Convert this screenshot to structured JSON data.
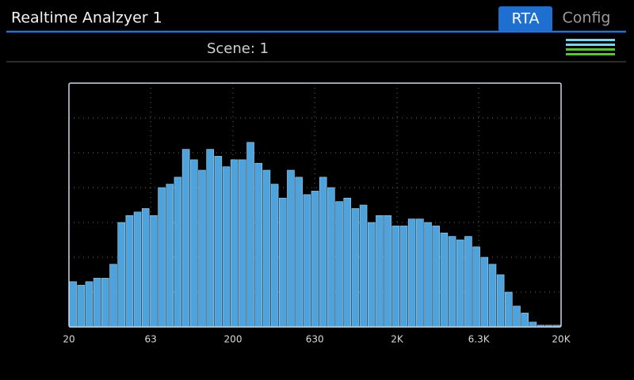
{
  "header": {
    "title": "Realtime Analzyer 1",
    "tabs": [
      "RTA",
      "Config"
    ],
    "active_tab": "RTA"
  },
  "scene": "Scene: 1",
  "chart_data": {
    "type": "bar",
    "color": "#4fa3dc",
    "categories": [
      null,
      null,
      null,
      null,
      null,
      null,
      null,
      null,
      null,
      null,
      null,
      null,
      null,
      null,
      null,
      null,
      null,
      null,
      null,
      null,
      null,
      null,
      null,
      null,
      null,
      null,
      null,
      null,
      null,
      null,
      null,
      null,
      null,
      null,
      null,
      null,
      null,
      null,
      null,
      null,
      null,
      null,
      null,
      null,
      null,
      null,
      null,
      null,
      null,
      null,
      null,
      null,
      null,
      null,
      null,
      null,
      null,
      null,
      null,
      null,
      null
    ],
    "values": [
      13,
      12,
      13,
      14,
      14,
      18,
      30,
      32,
      33,
      34,
      32,
      40,
      41,
      43,
      51,
      48,
      45,
      51,
      49,
      46,
      48,
      48,
      53,
      47,
      45,
      41,
      37,
      45,
      43,
      38,
      39,
      43,
      40,
      36,
      37,
      34,
      35,
      30,
      32,
      32,
      29,
      29,
      31,
      31,
      30,
      29,
      27,
      26,
      25,
      26,
      23,
      20,
      18,
      15,
      10,
      6,
      4,
      1.4,
      0.5,
      0.5,
      0.5
    ],
    "ylim": [
      0,
      70
    ],
    "ygrid": [
      10,
      20,
      30,
      40,
      50,
      60
    ],
    "xlim": [
      20,
      20000
    ],
    "xscale": "log",
    "xticks": [
      20,
      63,
      200,
      630,
      {
        "value": 2000,
        "label": "2K"
      },
      {
        "value": 6300,
        "label": "6.3K"
      },
      {
        "value": 20000,
        "label": "20K"
      }
    ],
    "grid": true
  }
}
